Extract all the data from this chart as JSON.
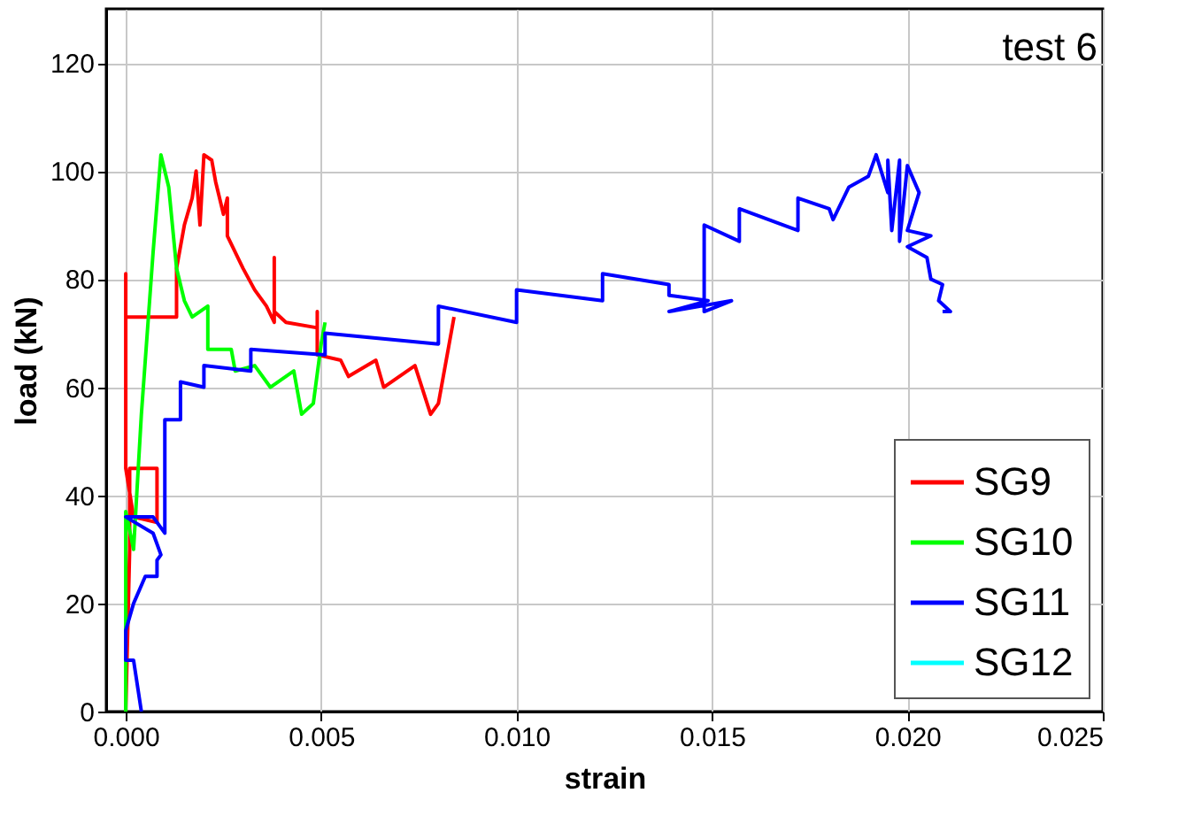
{
  "chart_data": {
    "type": "line",
    "xlabel": "strain",
    "ylabel": "load (kN)",
    "annotations": [
      "test 6"
    ],
    "xlim": [
      -0.0005,
      0.025
    ],
    "ylim": [
      0,
      130
    ],
    "xticks": [
      {
        "value": 0,
        "label": "0.000"
      },
      {
        "value": 0.005,
        "label": "0.005"
      },
      {
        "value": 0.01,
        "label": "0.010"
      },
      {
        "value": 0.015,
        "label": "0.015"
      },
      {
        "value": 0.02,
        "label": "0.020"
      },
      {
        "value": 0.025,
        "label": "0.025"
      }
    ],
    "yticks": [
      0,
      20,
      40,
      60,
      80,
      100,
      120
    ],
    "grid": true,
    "legend": "bottom right",
    "line_style": "solid",
    "marker": "none",
    "series": [
      {
        "name": "SG9",
        "color": "#ff0000",
        "x": [
          0.0,
          0.0001,
          0.0001,
          0.0008,
          0.0008,
          0.0002,
          0.0,
          0.0,
          0.0,
          0.0013,
          0.0013,
          0.0015,
          0.0017,
          0.0018,
          0.0019,
          0.002,
          0.0022,
          0.0023,
          0.0025,
          0.0026,
          0.0026,
          0.003,
          0.0033,
          0.0036,
          0.0038,
          0.0038,
          0.0038,
          0.0041,
          0.0049,
          0.0049,
          0.0049,
          0.0055,
          0.0057,
          0.0064,
          0.0066,
          0.0074,
          0.0078,
          0.008,
          0.0084
        ],
        "values": [
          0,
          30,
          45,
          45,
          35,
          36,
          45,
          81,
          73,
          73,
          82,
          90,
          95,
          100,
          90,
          103,
          102,
          98,
          92,
          95,
          88,
          82,
          78,
          75,
          72,
          84,
          74,
          72,
          71,
          74,
          66,
          65,
          62,
          65,
          60,
          64,
          55,
          57,
          73
        ]
      },
      {
        "name": "SG10",
        "color": "#00ff00",
        "x": [
          0.0,
          0.0,
          0.0002,
          0.0004,
          0.0007,
          0.0009,
          0.0011,
          0.0013,
          0.0015,
          0.0017,
          0.0021,
          0.0021,
          0.0027,
          0.0028,
          0.0033,
          0.0037,
          0.0043,
          0.0045,
          0.0048,
          0.005,
          0.0051
        ],
        "values": [
          0,
          37,
          30,
          55,
          85,
          103,
          97,
          82,
          76,
          73,
          75,
          67,
          67,
          63,
          64,
          60,
          63,
          55,
          57,
          68,
          72
        ]
      },
      {
        "name": "SG11",
        "color": "#0000ff",
        "x": [
          0.0004,
          0.0002,
          0.0,
          0.0,
          0.0002,
          0.0005,
          0.0008,
          0.0008,
          0.0009,
          0.0007,
          0.0,
          0.0007,
          0.001,
          0.001,
          0.0014,
          0.0014,
          0.002,
          0.002,
          0.0032,
          0.0032,
          0.0051,
          0.0051,
          0.008,
          0.008,
          0.01,
          0.01,
          0.0122,
          0.0122,
          0.0139,
          0.0139,
          0.0149,
          0.0139,
          0.0155,
          0.0148,
          0.0148,
          0.0157,
          0.0157,
          0.0172,
          0.0172,
          0.018,
          0.0181,
          0.0185,
          0.019,
          0.0192,
          0.0195,
          0.0195,
          0.0196,
          0.0198,
          0.0198,
          0.02,
          0.0203,
          0.02,
          0.0206,
          0.02,
          0.0205,
          0.0206,
          0.0209,
          0.0208,
          0.0211,
          0.0209
        ],
        "values": [
          0,
          9.5,
          9.5,
          15,
          20,
          25,
          25,
          28,
          29,
          33,
          36,
          36,
          33,
          54,
          54,
          61,
          60,
          64,
          63,
          67,
          66,
          70,
          68,
          75,
          72,
          78,
          76,
          81,
          79,
          77,
          76,
          74,
          76,
          74,
          90,
          87,
          93,
          89,
          95,
          93,
          91,
          97,
          99,
          103,
          96,
          102,
          89,
          102,
          87,
          101,
          96,
          89,
          88,
          86,
          84,
          80,
          79,
          76,
          74,
          74
        ]
      },
      {
        "name": "SG12",
        "color": "#00ffff"
      }
    ]
  }
}
